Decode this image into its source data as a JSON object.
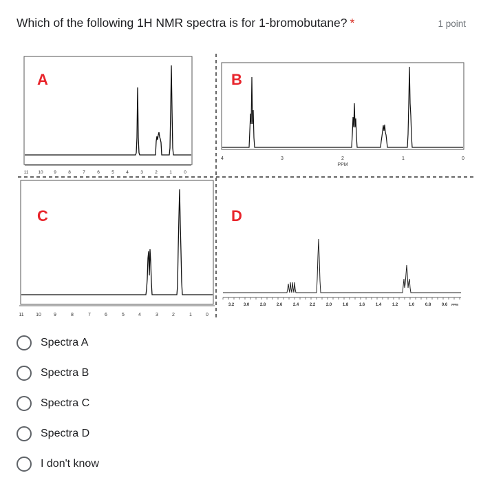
{
  "question": {
    "title": "Which of the following 1H NMR spectra is for 1-bromobutane?",
    "required_mark": "*",
    "points": "1 point"
  },
  "spectra": {
    "A": {
      "label": "A",
      "ticks": [
        "11",
        "10",
        "9",
        "8",
        "7",
        "6",
        "5",
        "4",
        "3",
        "2",
        "1",
        "0"
      ]
    },
    "B": {
      "label": "B",
      "ticks": [
        "4",
        "3",
        "2",
        "1",
        "0"
      ],
      "axis_label": "PPM"
    },
    "C": {
      "label": "C",
      "ticks": [
        "11",
        "10",
        "9",
        "8",
        "7",
        "6",
        "5",
        "4",
        "3",
        "2",
        "1",
        "0"
      ]
    },
    "D": {
      "label": "D",
      "ticks": [
        "3.2",
        "3.0",
        "2.8",
        "2.6",
        "2.4",
        "2.2",
        "2.0",
        "1.8",
        "1.6",
        "1.4",
        "1.2",
        "1.0",
        "0.8",
        "0.6"
      ],
      "axis_unit": "PPM"
    }
  },
  "options": [
    {
      "label": "Spectra A"
    },
    {
      "label": "Spectra B"
    },
    {
      "label": "Spectra C"
    },
    {
      "label": "Spectra D"
    },
    {
      "label": "I don't know"
    }
  ],
  "colors": {
    "label_red": "#e8242b",
    "required_red": "#d93025",
    "radio_border": "#5f6368"
  }
}
